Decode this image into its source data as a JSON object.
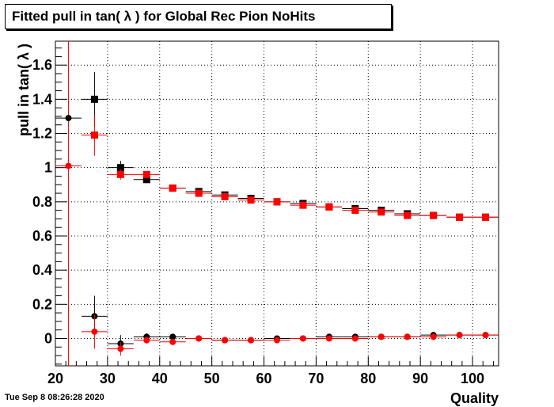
{
  "title": "Fitted pull in tan( λ ) for Global Rec Pion NoHits",
  "footer_timestamp": "Tue Sep  8 08:26:28 2020",
  "chart_data": {
    "type": "scatter",
    "title": "Fitted pull in tan( λ ) for Global Rec Pion NoHits",
    "xlabel": "Quality",
    "ylabel": "pull in tan( λ )",
    "xlim": [
      20,
      105
    ],
    "ylim": [
      -0.16,
      1.74
    ],
    "grid": true,
    "x_ticks": [
      "20",
      "30",
      "40",
      "50",
      "60",
      "70",
      "80",
      "90",
      "100"
    ],
    "y_ticks": [
      "0",
      "0.2",
      "0.4",
      "0.6",
      "0.8",
      "1",
      "1.2",
      "1.4",
      "1.6"
    ],
    "vertical_line_x": 22.5,
    "colors": {
      "black": "#000000",
      "red": "#ff0000"
    },
    "series": [
      {
        "color": "#000000",
        "marker": "square",
        "xerr": 2.5,
        "x": [
          27.5,
          32.5,
          37.5,
          42.5,
          47.5,
          52.5,
          57.5,
          62.5,
          67.5,
          72.5,
          77.5,
          82.5,
          87.5,
          92.5,
          97.5,
          102.5
        ],
        "y": [
          1.4,
          1.0,
          0.93,
          0.88,
          0.86,
          0.84,
          0.82,
          0.8,
          0.79,
          0.77,
          0.76,
          0.75,
          0.73,
          0.72,
          0.71,
          0.71
        ],
        "yerr": [
          0.16,
          0.04,
          0.02,
          0.01,
          0.01,
          0.01,
          0.01,
          0.01,
          0.01,
          0.01,
          0.01,
          0.01,
          0.01,
          0.01,
          0.01,
          0.01
        ]
      },
      {
        "color": "#ff0000",
        "marker": "square",
        "xerr": 2.5,
        "x": [
          27.5,
          32.5,
          37.5,
          42.5,
          47.5,
          52.5,
          57.5,
          62.5,
          67.5,
          72.5,
          77.5,
          82.5,
          87.5,
          92.5,
          97.5,
          102.5
        ],
        "y": [
          1.19,
          0.96,
          0.96,
          0.88,
          0.85,
          0.83,
          0.81,
          0.8,
          0.78,
          0.77,
          0.75,
          0.74,
          0.72,
          0.72,
          0.71,
          0.71
        ],
        "yerr": [
          0.12,
          0.03,
          0.02,
          0.01,
          0.01,
          0.01,
          0.01,
          0.01,
          0.01,
          0.01,
          0.01,
          0.01,
          0.01,
          0.01,
          0.01,
          0.01
        ]
      },
      {
        "color": "#000000",
        "marker": "circle",
        "xerr": 2.5,
        "x": [
          22.5,
          27.5,
          32.5,
          37.5,
          42.5,
          47.5,
          52.5,
          57.5,
          62.5,
          67.5,
          72.5,
          77.5,
          82.5,
          87.5,
          92.5,
          97.5,
          102.5
        ],
        "y": [
          1.29,
          0.13,
          -0.03,
          0.01,
          0.01,
          0.0,
          -0.01,
          -0.01,
          0.0,
          0.0,
          0.01,
          0.01,
          0.01,
          0.01,
          0.02,
          0.02,
          0.02
        ],
        "yerr": [
          0.0,
          0.12,
          0.05,
          0.02,
          0.01,
          0.01,
          0.01,
          0.01,
          0.01,
          0.01,
          0.01,
          0.01,
          0.01,
          0.01,
          0.01,
          0.01,
          0.01
        ]
      },
      {
        "color": "#ff0000",
        "marker": "circle",
        "xerr": 2.5,
        "x": [
          22.5,
          27.5,
          32.5,
          37.5,
          42.5,
          47.5,
          52.5,
          57.5,
          62.5,
          67.5,
          72.5,
          77.5,
          82.5,
          87.5,
          92.5,
          97.5,
          102.5
        ],
        "y": [
          1.01,
          0.04,
          -0.06,
          -0.01,
          -0.02,
          0.0,
          -0.01,
          -0.01,
          -0.01,
          0.0,
          0.0,
          0.0,
          0.01,
          0.01,
          0.01,
          0.02,
          0.02
        ],
        "yerr": [
          0.0,
          0.1,
          0.04,
          0.02,
          0.01,
          0.01,
          0.01,
          0.01,
          0.01,
          0.01,
          0.01,
          0.01,
          0.01,
          0.01,
          0.01,
          0.01,
          0.01
        ]
      }
    ]
  }
}
